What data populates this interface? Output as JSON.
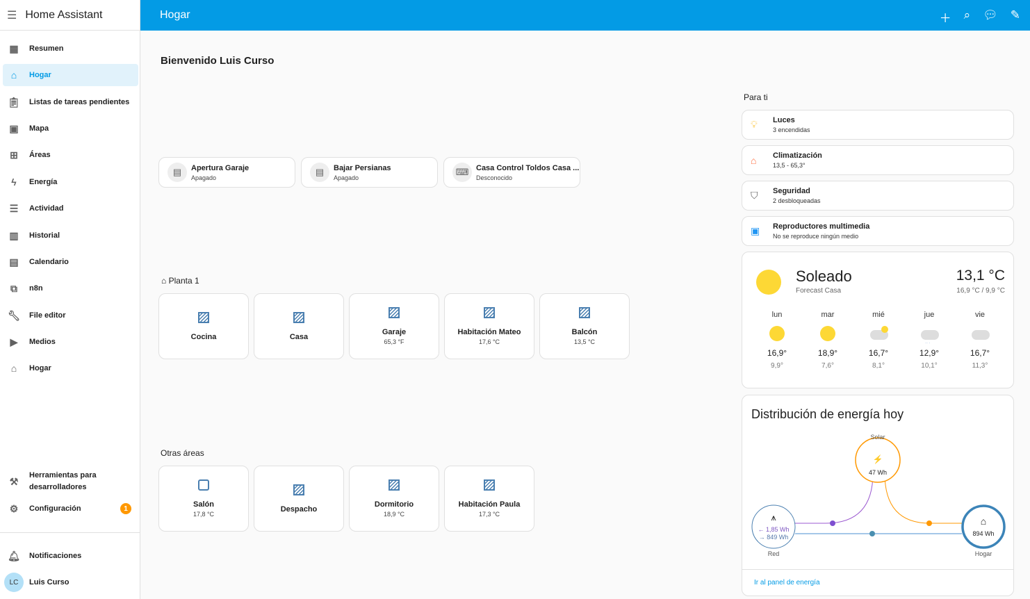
{
  "app": {
    "title": "Home Assistant",
    "page_title": "Hogar"
  },
  "sidebar": {
    "items": [
      {
        "label": "Resumen",
        "icon": "dashboard-icon"
      },
      {
        "label": "Hogar",
        "icon": "home-leaf-icon",
        "selected": true
      },
      {
        "label": "Listas de tareas pendientes",
        "icon": "clipboard-list-icon"
      },
      {
        "label": "Mapa",
        "icon": "map-account-icon"
      },
      {
        "label": "Áreas",
        "icon": "floor-plan-icon"
      },
      {
        "label": "Energía",
        "icon": "lightning-icon"
      },
      {
        "label": "Actividad",
        "icon": "list-icon"
      },
      {
        "label": "Historial",
        "icon": "chart-box-icon"
      },
      {
        "label": "Calendario",
        "icon": "calendar-icon"
      },
      {
        "label": "n8n",
        "icon": "sitemap-icon"
      },
      {
        "label": "File editor",
        "icon": "wrench-icon"
      },
      {
        "label": "Medios",
        "icon": "play-box-icon"
      },
      {
        "label": "Hogar",
        "icon": "home-icon"
      }
    ],
    "dev_tools": "Herramientas para desarrolladores",
    "settings": "Configuración",
    "settings_badge": "1",
    "notifications": "Notificaciones",
    "user": "Luis Curso",
    "user_initials": "LC"
  },
  "main": {
    "welcome": "Bienvenido Luis Curso",
    "tiles": [
      {
        "name": "Apertura Garaje",
        "state": "Apagado"
      },
      {
        "name": "Bajar Persianas",
        "state": "Apagado"
      },
      {
        "name": "Casa Control Toldos Casa ...",
        "state": "Desconocido"
      }
    ],
    "planta": {
      "title": "Planta 1",
      "areas": [
        {
          "name": "Cocina",
          "state": ""
        },
        {
          "name": "Casa",
          "state": ""
        },
        {
          "name": "Garaje",
          "state": "65,3 °F"
        },
        {
          "name": "Habitación Mateo",
          "state": "17,6 °C"
        },
        {
          "name": "Balcón",
          "state": "13,5 °C"
        }
      ]
    },
    "otras": {
      "title": "Otras áreas",
      "areas": [
        {
          "name": "Salón",
          "state": "17,8 °C"
        },
        {
          "name": "Despacho",
          "state": ""
        },
        {
          "name": "Dormitorio",
          "state": "18,9 °C"
        },
        {
          "name": "Habitación Paula",
          "state": "17,3 °C"
        }
      ]
    }
  },
  "para_ti": {
    "title": "Para ti",
    "cards": [
      {
        "name": "Luces",
        "state": "3 encendidas",
        "icon": "lamps-icon",
        "color": "#fbc02d"
      },
      {
        "name": "Climatización",
        "state": "13,5 - 65,3°",
        "icon": "home-thermometer-icon",
        "color": "#ff7043"
      },
      {
        "name": "Seguridad",
        "state": "2 desbloqueadas",
        "icon": "shield-icon",
        "color": "#616161"
      },
      {
        "name": "Reproductores multimedia",
        "state": "No se reproduce ningún medio",
        "icon": "multimedia-icon",
        "color": "#2196f3"
      }
    ]
  },
  "weather": {
    "condition": "Soleado",
    "name": "Forecast Casa",
    "temp": "13,1 °C",
    "hilo": "16,9 °C / 9,9 °C",
    "forecast": [
      {
        "day": "lun",
        "hi": "16,9°",
        "lo": "9,9°",
        "icon": "sunny"
      },
      {
        "day": "mar",
        "hi": "18,9°",
        "lo": "7,6°",
        "icon": "sunny"
      },
      {
        "day": "mié",
        "hi": "16,7°",
        "lo": "8,1°",
        "icon": "partly-cloudy"
      },
      {
        "day": "jue",
        "hi": "12,9°",
        "lo": "10,1°",
        "icon": "snowy-rainy"
      },
      {
        "day": "vie",
        "hi": "16,7°",
        "lo": "11,3°",
        "icon": "cloudy"
      }
    ]
  },
  "energy": {
    "title": "Distribución de energía hoy",
    "solar_label": "Solar",
    "solar_value": "47 Wh",
    "grid_label": "Red",
    "grid_in": "← 1,85 Wh",
    "grid_out": "→ 849 Wh",
    "home_label": "Hogar",
    "home_value": "894 Wh",
    "link": "Ir al panel de energía"
  }
}
